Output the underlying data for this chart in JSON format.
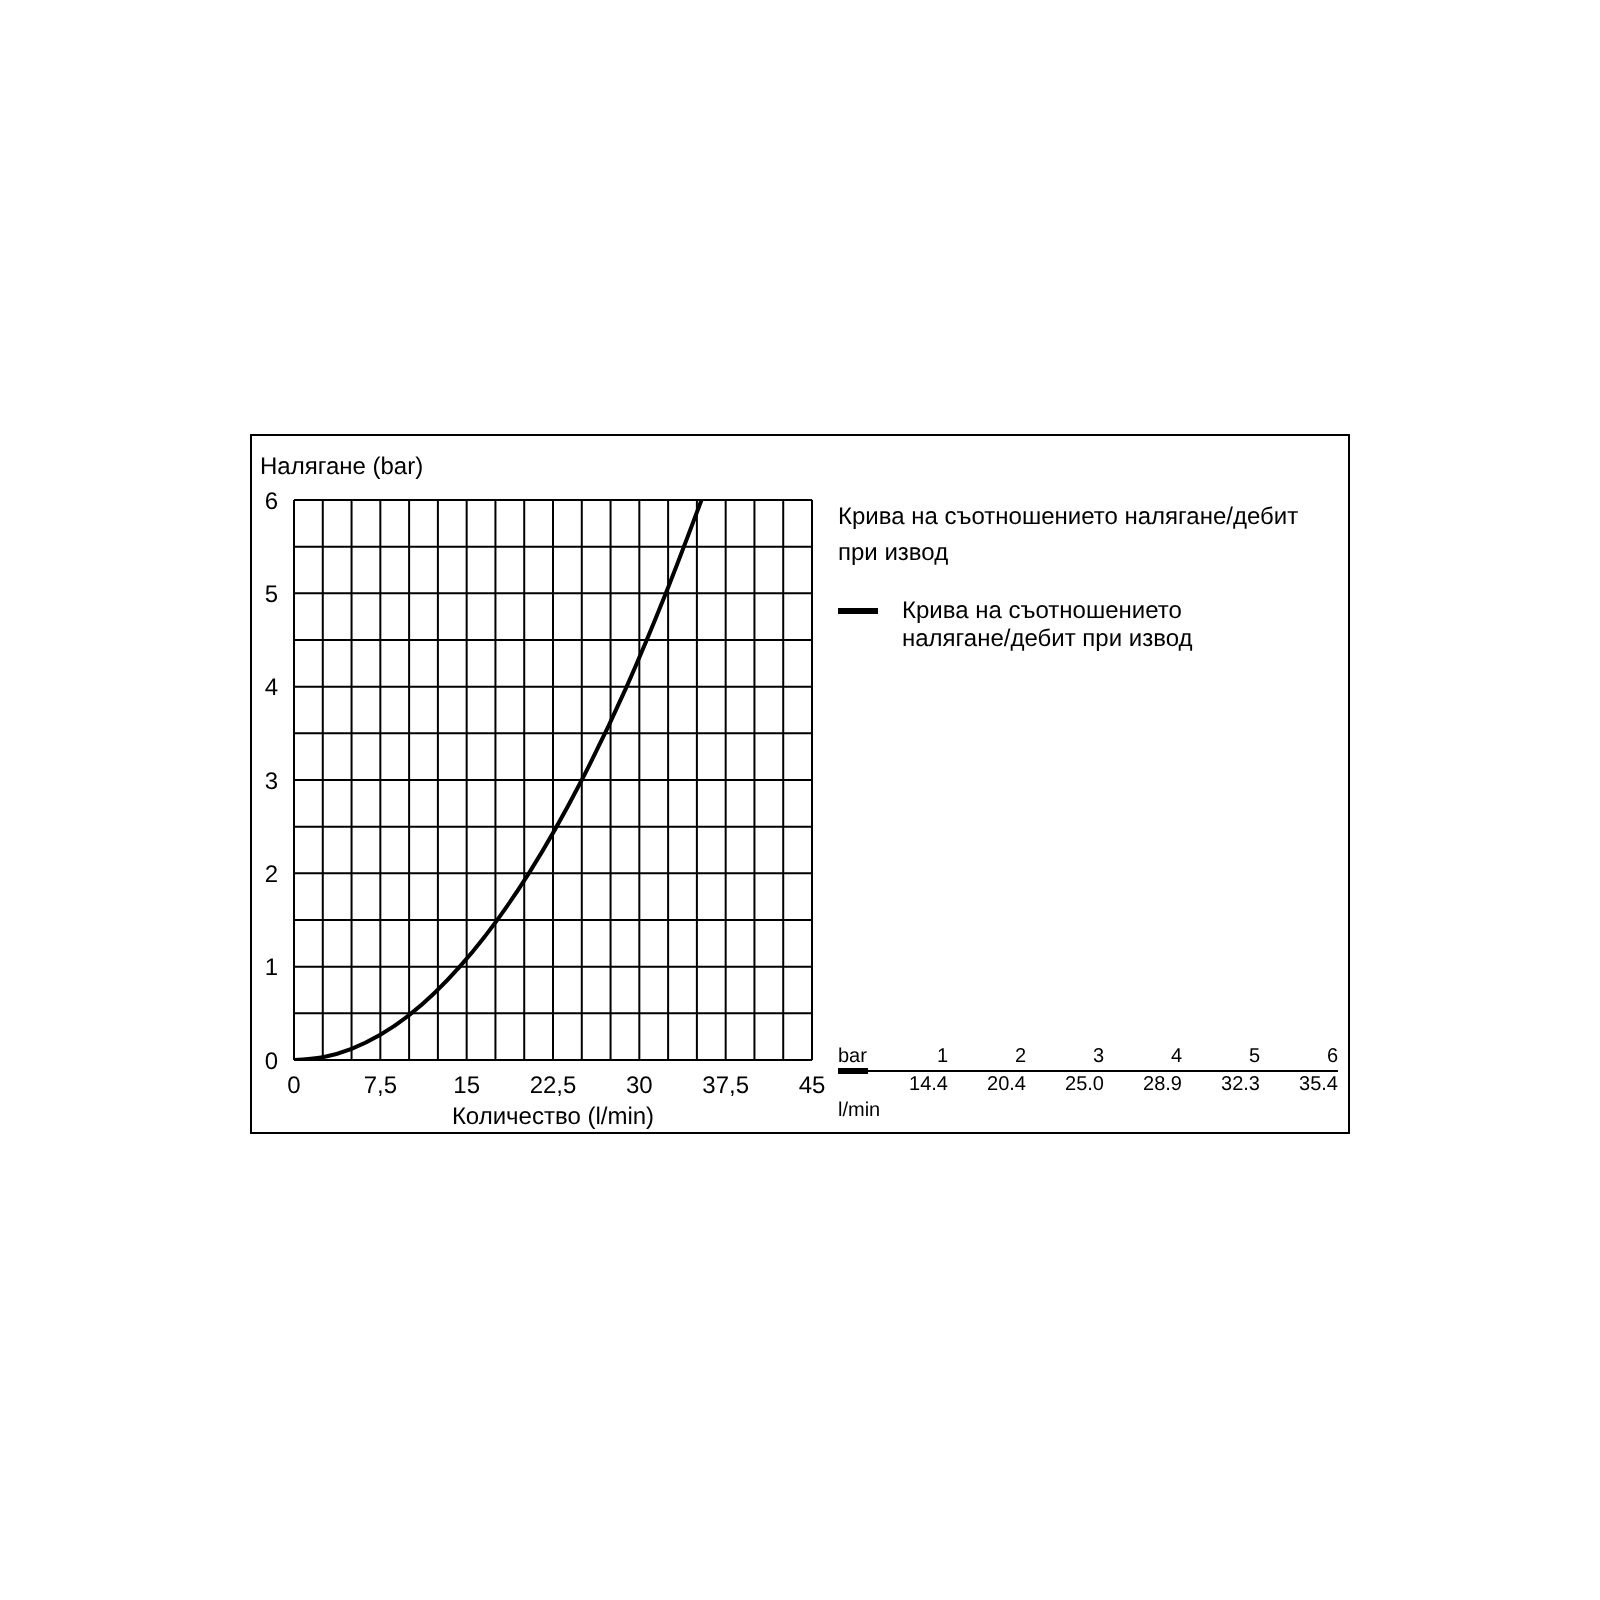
{
  "chart_data": {
    "type": "line",
    "title": "Крива на съотношението налягане/дебит при извод",
    "xlabel": "Количество (l/min)",
    "ylabel": "Налягане (bar)",
    "x": [
      0,
      2.5,
      5,
      7.5,
      10,
      14.4,
      20.4,
      25.0,
      28.9,
      32.3,
      35.4
    ],
    "series": [
      {
        "name": "Крива на съотношението налягане/дебит при извод",
        "color": "#000000",
        "values": [
          0,
          0.03,
          0.12,
          0.27,
          0.48,
          1,
          2,
          3,
          4,
          5,
          6
        ]
      }
    ],
    "annotations": [
      "bar",
      "1",
      "2",
      "3",
      "4",
      "5",
      "6",
      "l/min",
      "14.4",
      "20.4",
      "25.0",
      "28.9",
      "32.3",
      "35.4"
    ],
    "xlim": [
      0,
      45
    ],
    "xticks": [
      0,
      {
        "value": 2.5,
        "label": null
      },
      {
        "value": 5,
        "label": null
      },
      {
        "value": 7.5,
        "label": "7,5"
      },
      {
        "value": 10,
        "label": null
      },
      {
        "value": 12.5,
        "label": null
      },
      15,
      {
        "value": 17.5,
        "label": null
      },
      {
        "value": 20,
        "label": null
      },
      {
        "value": 22.5,
        "label": "22,5"
      },
      {
        "value": 25,
        "label": null
      },
      {
        "value": 27.5,
        "label": null
      },
      30,
      {
        "value": 32.5,
        "label": null
      },
      {
        "value": 35,
        "label": null
      },
      {
        "value": 37.5,
        "label": "37,5"
      },
      {
        "value": 40,
        "label": null
      },
      {
        "value": 42.5,
        "label": null
      },
      45
    ],
    "ylim": [
      0,
      6
    ],
    "yticks": [
      0,
      {
        "value": 0.5,
        "label": null
      },
      1,
      {
        "value": 1.5,
        "label": null
      },
      2,
      {
        "value": 2.5,
        "label": null
      },
      3,
      {
        "value": 3.5,
        "label": null
      },
      4,
      {
        "value": 4.5,
        "label": null
      },
      5,
      {
        "value": 5.5,
        "label": null
      },
      6
    ],
    "grid": true,
    "legend": "top right",
    "marker": "none",
    "line_style": "solid"
  }
}
